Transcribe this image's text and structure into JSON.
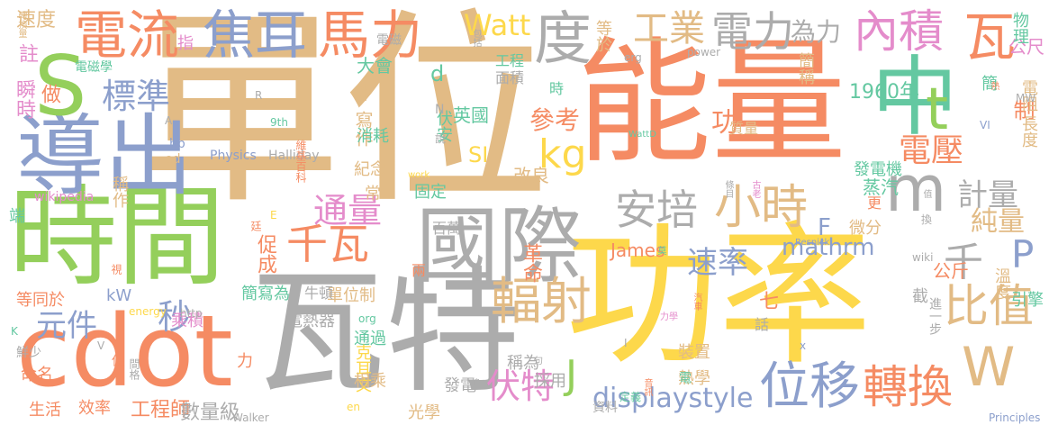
{
  "palette": {
    "tan": "#e2bb85",
    "orange": "#f58b63",
    "green": "#94cf5b",
    "gray": "#acacac",
    "yellow": "#fdd84b",
    "teal": "#64c8a1",
    "blue": "#8c9fcc",
    "pink": "#e48ccb"
  },
  "words": [
    {
      "text": "單位",
      "name": "word-danwei",
      "color": "tan"
    },
    {
      "text": "能量",
      "name": "word-nengliang",
      "color": "orange"
    },
    {
      "text": "功率",
      "name": "word-gonglv",
      "color": "yellow"
    },
    {
      "text": "時間",
      "name": "word-shijian",
      "color": "green"
    },
    {
      "text": "瓦特",
      "name": "word-wate",
      "color": "gray"
    },
    {
      "text": "cdot",
      "name": "word-cdot",
      "color": "orange"
    },
    {
      "text": "導出",
      "name": "word-daochu",
      "color": "blue"
    },
    {
      "text": "國際",
      "name": "word-guoji",
      "color": "gray"
    },
    {
      "text": "中",
      "name": "word-zhong",
      "color": "teal"
    },
    {
      "text": "m",
      "name": "word-m",
      "color": "gray"
    },
    {
      "text": "S",
      "name": "word-s",
      "color": "green"
    },
    {
      "text": "W",
      "name": "word-w",
      "color": "tan"
    },
    {
      "text": "電流",
      "name": "word-dianliu",
      "color": "orange"
    },
    {
      "text": "焦耳",
      "name": "word-jiaoer",
      "color": "blue"
    },
    {
      "text": "馬力",
      "name": "word-mali",
      "color": "orange"
    },
    {
      "text": "度",
      "name": "word-du",
      "color": "gray"
    },
    {
      "text": "Watt",
      "name": "word-watt",
      "color": "yellow"
    },
    {
      "text": "工業",
      "name": "word-gongye",
      "color": "tan"
    },
    {
      "text": "電力",
      "name": "word-dianli",
      "color": "gray"
    },
    {
      "text": "內積",
      "name": "word-neiji",
      "color": "pink"
    },
    {
      "text": "瓦",
      "name": "word-wa",
      "color": "orange"
    },
    {
      "text": "t",
      "name": "word-t",
      "color": "green"
    },
    {
      "text": "標準",
      "name": "word-biaozhun",
      "color": "blue"
    },
    {
      "text": "kg",
      "name": "word-kg",
      "color": "yellow"
    },
    {
      "text": "安培",
      "name": "word-anpei",
      "color": "gray"
    },
    {
      "text": "小時",
      "name": "word-xiaoshi",
      "color": "tan"
    },
    {
      "text": "輻射",
      "name": "word-fushe",
      "color": "tan"
    },
    {
      "text": "千瓦",
      "name": "word-qianwa",
      "color": "orange"
    },
    {
      "text": "通量",
      "name": "word-tongliang",
      "color": "pink"
    },
    {
      "text": "秒",
      "name": "word-miao",
      "color": "blue"
    },
    {
      "text": "元件",
      "name": "word-yuanjian",
      "color": "blue"
    },
    {
      "text": "位移",
      "name": "word-weiyi",
      "color": "blue"
    },
    {
      "text": "轉換",
      "name": "word-zhuanhuan",
      "color": "orange"
    },
    {
      "text": "比值",
      "name": "word-bizhi",
      "color": "tan"
    },
    {
      "text": "伏特",
      "name": "word-fute",
      "color": "pink"
    },
    {
      "text": "速率",
      "name": "word-sulv",
      "color": "blue"
    },
    {
      "text": "電壓",
      "name": "word-dianya",
      "color": "orange"
    },
    {
      "text": "計量",
      "name": "word-jiliang",
      "color": "gray"
    },
    {
      "text": "純量",
      "name": "word-chunliang",
      "color": "tan"
    },
    {
      "text": "千",
      "name": "word-qian",
      "color": "gray"
    },
    {
      "text": "P",
      "name": "word-p",
      "color": "blue"
    },
    {
      "text": "J",
      "name": "word-j",
      "color": "green"
    },
    {
      "text": "SI",
      "name": "word-si",
      "color": "yellow"
    },
    {
      "text": "d",
      "name": "word-d",
      "color": "teal"
    },
    {
      "text": "F",
      "name": "word-f",
      "color": "blue"
    },
    {
      "text": "mathrm",
      "name": "word-mathrm",
      "color": "blue"
    },
    {
      "text": "displaystyle",
      "name": "word-displaystyle",
      "color": "blue"
    },
    {
      "text": "參考",
      "name": "word-cankao",
      "color": "orange"
    },
    {
      "text": "功",
      "name": "word-gong",
      "color": "orange"
    },
    {
      "text": "1960年",
      "name": "word-1960",
      "color": "teal"
    },
    {
      "text": "為力",
      "name": "word-weili",
      "color": "gray"
    },
    {
      "text": "公尺",
      "name": "word-gongchi",
      "color": "pink"
    },
    {
      "text": "速度",
      "name": "word-sudu",
      "color": "tan"
    },
    {
      "text": "註",
      "name": "word-zhu",
      "color": "pink"
    },
    {
      "text": "做",
      "name": "word-zuo",
      "color": "orange"
    },
    {
      "text": "瞬時",
      "name": "word-shunshi",
      "color": "pink"
    },
    {
      "text": "電磁學",
      "name": "word-dianci-xue",
      "color": "teal"
    },
    {
      "text": "電磁",
      "name": "word-dianci",
      "color": "gray"
    },
    {
      "text": "大會",
      "name": "word-dahui",
      "color": "teal"
    },
    {
      "text": "外",
      "name": "word-wai",
      "color": "tan"
    },
    {
      "text": "英國",
      "name": "word-yingguo",
      "color": "teal"
    },
    {
      "text": "寫作",
      "name": "word-xiezuo",
      "color": "tan"
    },
    {
      "text": "伏安",
      "name": "word-fuan",
      "color": "teal"
    },
    {
      "text": "消耗",
      "name": "word-xiaohao",
      "color": "teal"
    },
    {
      "text": "紀念",
      "name": "word-jinian",
      "color": "tan"
    },
    {
      "text": "改良",
      "name": "word-gailiang",
      "color": "tan"
    },
    {
      "text": "固定",
      "name": "word-guding",
      "color": "teal"
    },
    {
      "text": "常",
      "name": "word-chang",
      "color": "tan"
    },
    {
      "text": "蒸汽",
      "name": "word-zhengqi",
      "color": "teal"
    },
    {
      "text": "發電機",
      "name": "word-fadianji",
      "color": "teal"
    },
    {
      "text": "制",
      "name": "word-zhi",
      "color": "orange"
    },
    {
      "text": "更",
      "name": "word-geng",
      "color": "orange"
    },
    {
      "text": "微分",
      "name": "word-weifen",
      "color": "tan"
    },
    {
      "text": "物理",
      "name": "word-wuli",
      "color": "teal"
    },
    {
      "text": "電阻",
      "name": "word-dianzu",
      "color": "tan"
    },
    {
      "text": "長度",
      "name": "word-changdu",
      "color": "tan"
    },
    {
      "text": "簡稱",
      "name": "word-jiancheng",
      "color": "tan"
    },
    {
      "text": "簡",
      "name": "word-jian",
      "color": "teal"
    },
    {
      "text": "時",
      "name": "word-shi",
      "color": "teal"
    },
    {
      "text": "工程",
      "name": "word-gongcheng",
      "color": "teal"
    },
    {
      "text": "面積",
      "name": "word-mianji",
      "color": "gray"
    },
    {
      "text": "等於",
      "name": "word-dengyu",
      "color": "tan"
    },
    {
      "text": "指",
      "name": "word-zhi2",
      "color": "pink"
    },
    {
      "text": "質量",
      "name": "word-zhiliang",
      "color": "tan"
    },
    {
      "text": "革命",
      "name": "word-geming",
      "color": "orange"
    },
    {
      "text": "百萬",
      "name": "word-baiwan",
      "color": "gray"
    },
    {
      "text": "兩",
      "name": "word-liang",
      "color": "orange"
    },
    {
      "text": "James",
      "name": "word-james",
      "color": "orange"
    },
    {
      "text": "kW",
      "name": "word-kw",
      "color": "blue"
    },
    {
      "text": "促成",
      "name": "word-cucheng",
      "color": "orange"
    },
    {
      "text": "簡寫為",
      "name": "word-jianxiewei",
      "color": "teal"
    },
    {
      "text": "單位制",
      "name": "word-danweizhi",
      "color": "tan"
    },
    {
      "text": "牛頓",
      "name": "word-niudun",
      "color": "gray"
    },
    {
      "text": "乘積",
      "name": "word-chengji",
      "color": "pink"
    },
    {
      "text": "電熱器",
      "name": "word-dianreqi",
      "color": "gray"
    },
    {
      "text": "力",
      "name": "word-li",
      "color": "orange"
    },
    {
      "text": "通過",
      "name": "word-tongguo",
      "color": "teal"
    },
    {
      "text": "克耳文",
      "name": "word-keerwen",
      "color": "yellow"
    },
    {
      "text": "相乘",
      "name": "word-xiangcheng",
      "color": "tan"
    },
    {
      "text": "發電",
      "name": "word-fadian",
      "color": "gray"
    },
    {
      "text": "稱為",
      "name": "word-chengwei",
      "color": "gray"
    },
    {
      "text": "採用",
      "name": "word-caiyong",
      "color": "gray"
    },
    {
      "text": "裝置",
      "name": "word-zhuangzhi",
      "color": "tan"
    },
    {
      "text": "熱學",
      "name": "word-rexue",
      "color": "tan"
    },
    {
      "text": "光學",
      "name": "word-guangxue",
      "color": "tan"
    },
    {
      "text": "電",
      "name": "word-dian",
      "color": "teal"
    },
    {
      "text": "資料",
      "name": "word-ziliao",
      "color": "gray"
    },
    {
      "text": "命名",
      "name": "word-mingming",
      "color": "orange"
    },
    {
      "text": "生活",
      "name": "word-shenghuo",
      "color": "orange"
    },
    {
      "text": "效率",
      "name": "word-xiaolv",
      "color": "orange"
    },
    {
      "text": "工程師",
      "name": "word-gongchengshi",
      "color": "orange"
    },
    {
      "text": "數量級",
      "name": "word-shuliangji",
      "color": "gray"
    },
    {
      "text": "等同於",
      "name": "word-dengtongyu",
      "color": "orange"
    },
    {
      "text": "稱作",
      "name": "word-chengzuo",
      "color": "tan"
    },
    {
      "text": "引擎",
      "name": "word-yinqing",
      "color": "teal"
    },
    {
      "text": "溫度",
      "name": "word-wendu",
      "color": "tan"
    },
    {
      "text": "公斤",
      "name": "word-gongjin",
      "color": "orange"
    },
    {
      "text": "截",
      "name": "word-jie",
      "color": "gray"
    },
    {
      "text": "七",
      "name": "word-qi",
      "color": "orange"
    },
    {
      "text": "進一步",
      "name": "word-jinyibu",
      "color": "gray"
    },
    {
      "text": "端",
      "name": "word-duan",
      "color": "teal"
    },
    {
      "text": "wikipedia",
      "name": "word-wikipedia",
      "color": "pink"
    },
    {
      "text": "Physics",
      "name": "word-physics",
      "color": "blue"
    },
    {
      "text": "Halliday",
      "name": "word-halliday",
      "color": "gray"
    },
    {
      "text": "WattD",
      "name": "word-wattd",
      "color": "teal"
    },
    {
      "text": "power",
      "name": "word-power",
      "color": "gray"
    },
    {
      "text": "erg",
      "name": "word-erg",
      "color": "gray"
    },
    {
      "text": "work",
      "name": "word-work",
      "color": "yellow"
    },
    {
      "text": "Resnick",
      "name": "word-resnick",
      "color": "blue"
    },
    {
      "text": "Walker",
      "name": "word-walker",
      "color": "gray"
    },
    {
      "text": "Principles",
      "name": "word-principles",
      "color": "blue"
    },
    {
      "text": "MW",
      "name": "word-mw",
      "color": "gray"
    },
    {
      "text": "9th",
      "name": "word-9th",
      "color": "teal"
    },
    {
      "text": "energy",
      "name": "word-energy",
      "color": "yellow"
    },
    {
      "text": "http",
      "name": "word-http",
      "color": "gray"
    },
    {
      "text": "wiki",
      "name": "word-wiki",
      "color": "gray"
    },
    {
      "text": "org",
      "name": "word-org",
      "color": "teal"
    },
    {
      "text": "en",
      "name": "word-en",
      "color": "yellow"
    },
    {
      "text": "hp",
      "name": "word-hp",
      "color": "blue"
    },
    {
      "text": "ed",
      "name": "word-ed",
      "color": "tan"
    },
    {
      "text": "N",
      "name": "word-n",
      "color": "gray"
    },
    {
      "text": "R",
      "name": "word-r",
      "color": "gray"
    },
    {
      "text": "A",
      "name": "word-a",
      "color": "gray"
    },
    {
      "text": "E",
      "name": "word-e",
      "color": "yellow"
    },
    {
      "text": "K",
      "name": "word-k",
      "color": "teal"
    },
    {
      "text": "V",
      "name": "word-v",
      "color": "gray"
    },
    {
      "text": "VI",
      "name": "word-vi",
      "color": "blue"
    },
    {
      "text": "I",
      "name": "word-i",
      "color": "gray"
    },
    {
      "text": "x",
      "name": "word-x",
      "color": "blue"
    },
    {
      "text": "定義",
      "name": "word-dingyi",
      "color": "teal"
    },
    {
      "text": "說",
      "name": "word-shuo",
      "color": "gray"
    },
    {
      "text": "維基百科",
      "name": "word-weijibaike",
      "color": "orange"
    },
    {
      "text": "廷",
      "name": "word-ting",
      "color": "orange"
    },
    {
      "text": "鮮少",
      "name": "word-xianshao",
      "color": "gray"
    },
    {
      "text": "視",
      "name": "word-shi2",
      "color": "orange"
    },
    {
      "text": "使",
      "name": "word-shi3",
      "color": "orange"
    },
    {
      "text": "間格",
      "name": "word-jiange",
      "color": "gray"
    },
    {
      "text": "轉換量",
      "name": "word-zhuanhuanliang",
      "color": "tan"
    },
    {
      "text": "包括",
      "name": "word-baokuo",
      "color": "gray"
    },
    {
      "text": "條目",
      "name": "word-tiaomu",
      "color": "gray"
    },
    {
      "text": "古老",
      "name": "word-gulao",
      "color": "pink"
    },
    {
      "text": "熱",
      "name": "word-re",
      "color": "orange"
    },
    {
      "text": "換",
      "name": "word-huan",
      "color": "gray"
    },
    {
      "text": "莫",
      "name": "word-mo",
      "color": "teal"
    },
    {
      "text": "話",
      "name": "word-hua",
      "color": "gray"
    },
    {
      "text": "音訊",
      "name": "word-yinxun",
      "color": "orange"
    },
    {
      "text": "汽車",
      "name": "word-qiche",
      "color": "orange"
    },
    {
      "text": "力學",
      "name": "word-lixue",
      "color": "pink"
    },
    {
      "text": "句",
      "name": "word-ju",
      "color": "gray"
    },
    {
      "text": "條",
      "name": "word-tiao",
      "color": "gray"
    },
    {
      "text": "值",
      "name": "word-zhi3",
      "color": "gray"
    }
  ]
}
